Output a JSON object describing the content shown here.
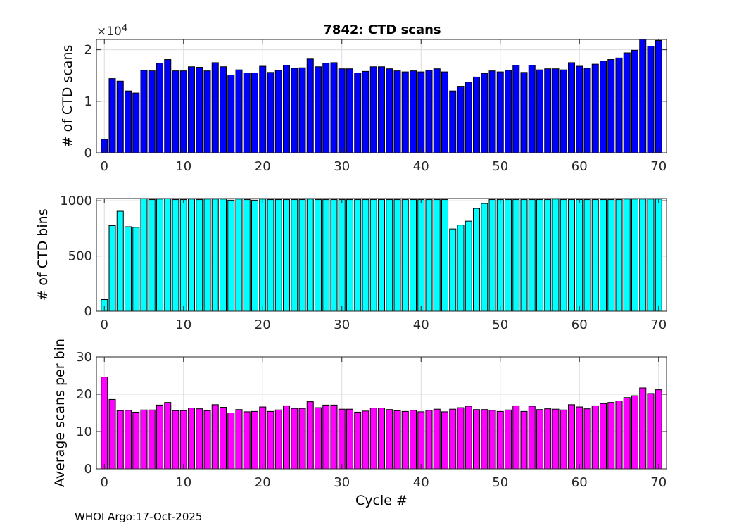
{
  "figure": {
    "title": "7842: CTD scans",
    "footer": "WHOI Argo:17-Oct-2025"
  },
  "chart_data": [
    {
      "type": "bar",
      "name": "ctd-scans",
      "title": "7842: CTD scans",
      "xlabel": "",
      "ylabel": "# of CTD scans",
      "xlim": [
        -1,
        71
      ],
      "ylim": [
        0,
        22000
      ],
      "xticks": [
        0,
        10,
        20,
        30,
        40,
        50,
        60,
        70
      ],
      "yticks": [
        0,
        10000,
        20000
      ],
      "ytick_labels": [
        "0",
        "1",
        "2"
      ],
      "exponent_label": "×10",
      "exponent_power": "4",
      "grid": true,
      "color": "#0000ff",
      "x": [
        0,
        1,
        2,
        3,
        4,
        5,
        6,
        7,
        8,
        9,
        10,
        11,
        12,
        13,
        14,
        15,
        16,
        17,
        18,
        19,
        20,
        21,
        22,
        23,
        24,
        25,
        26,
        27,
        28,
        29,
        30,
        31,
        32,
        33,
        34,
        35,
        36,
        37,
        38,
        39,
        40,
        41,
        42,
        43,
        44,
        45,
        46,
        47,
        48,
        49,
        50,
        51,
        52,
        53,
        54,
        55,
        56,
        57,
        58,
        59,
        60,
        61,
        62,
        63,
        64,
        65,
        66,
        67,
        68,
        69,
        70
      ],
      "values": [
        2600,
        14400,
        13900,
        12000,
        11600,
        16000,
        15900,
        17400,
        18100,
        15900,
        15900,
        16700,
        16600,
        15900,
        17500,
        16700,
        15100,
        16100,
        15500,
        15500,
        16800,
        15600,
        16000,
        17000,
        16400,
        16500,
        18200,
        16700,
        17400,
        17500,
        16300,
        16300,
        15500,
        15800,
        16700,
        16700,
        16300,
        15900,
        15700,
        15900,
        15700,
        16000,
        16300,
        15700,
        12000,
        12900,
        13700,
        14700,
        15400,
        15900,
        15700,
        16000,
        17000,
        15600,
        17000,
        16100,
        16300,
        16300,
        16100,
        17500,
        16800,
        16400,
        17200,
        17800,
        18100,
        18400,
        19400,
        19900,
        22300,
        20700,
        21800
      ]
    },
    {
      "type": "bar",
      "name": "ctd-bins",
      "title": "",
      "xlabel": "",
      "ylabel": "# of CTD bins",
      "xlim": [
        -1,
        71
      ],
      "ylim": [
        0,
        1020
      ],
      "xticks": [
        0,
        10,
        20,
        30,
        40,
        50,
        60,
        70
      ],
      "yticks": [
        0,
        500,
        1000
      ],
      "ytick_labels": [
        "0",
        "500",
        "1000"
      ],
      "grid": true,
      "color": "#00ffff",
      "x": [
        0,
        1,
        2,
        3,
        4,
        5,
        6,
        7,
        8,
        9,
        10,
        11,
        12,
        13,
        14,
        15,
        16,
        17,
        18,
        19,
        20,
        21,
        22,
        23,
        24,
        25,
        26,
        27,
        28,
        29,
        30,
        31,
        32,
        33,
        34,
        35,
        36,
        37,
        38,
        39,
        40,
        41,
        42,
        43,
        44,
        45,
        46,
        47,
        48,
        49,
        50,
        51,
        52,
        53,
        54,
        55,
        56,
        57,
        58,
        59,
        60,
        61,
        62,
        63,
        64,
        65,
        66,
        67,
        68,
        69,
        70
      ],
      "values": [
        105,
        775,
        905,
        765,
        760,
        1020,
        1010,
        1015,
        1020,
        1010,
        1010,
        1015,
        1010,
        1015,
        1015,
        1015,
        1005,
        1015,
        1010,
        1005,
        1015,
        1010,
        1010,
        1010,
        1010,
        1010,
        1015,
        1010,
        1010,
        1010,
        1010,
        1010,
        1010,
        1010,
        1010,
        1010,
        1010,
        1010,
        1010,
        1010,
        1010,
        1010,
        1010,
        1010,
        745,
        780,
        815,
        930,
        975,
        1010,
        1010,
        1010,
        1010,
        1010,
        1010,
        1010,
        1010,
        1015,
        1010,
        1010,
        1010,
        1010,
        1010,
        1010,
        1010,
        1010,
        1015,
        1015,
        1015,
        1015,
        1015
      ]
    },
    {
      "type": "bar",
      "name": "avg-scans-per-bin",
      "title": "",
      "xlabel": "Cycle #",
      "ylabel": "Average scans per bin",
      "xlim": [
        -1,
        71
      ],
      "ylim": [
        0,
        30
      ],
      "xticks": [
        0,
        10,
        20,
        30,
        40,
        50,
        60,
        70
      ],
      "yticks": [
        0,
        10,
        20,
        30
      ],
      "ytick_labels": [
        "0",
        "10",
        "20",
        "30"
      ],
      "grid": true,
      "color": "#ff00ff",
      "x": [
        0,
        1,
        2,
        3,
        4,
        5,
        6,
        7,
        8,
        9,
        10,
        11,
        12,
        13,
        14,
        15,
        16,
        17,
        18,
        19,
        20,
        21,
        22,
        23,
        24,
        25,
        26,
        27,
        28,
        29,
        30,
        31,
        32,
        33,
        34,
        35,
        36,
        37,
        38,
        39,
        40,
        41,
        42,
        43,
        44,
        45,
        46,
        47,
        48,
        49,
        50,
        51,
        52,
        53,
        54,
        55,
        56,
        57,
        58,
        59,
        60,
        61,
        62,
        63,
        64,
        65,
        66,
        67,
        68,
        69,
        70
      ],
      "values": [
        24.6,
        18.6,
        15.6,
        15.7,
        15.2,
        15.8,
        15.8,
        17.1,
        17.8,
        15.6,
        15.6,
        16.3,
        16.1,
        15.6,
        17.2,
        16.5,
        15.0,
        15.9,
        15.3,
        15.4,
        16.6,
        15.4,
        15.8,
        16.9,
        16.2,
        16.2,
        18.0,
        16.4,
        17.1,
        17.1,
        16.0,
        16.0,
        15.2,
        15.5,
        16.3,
        16.3,
        15.9,
        15.6,
        15.4,
        15.7,
        15.3,
        15.7,
        16.0,
        15.3,
        16.0,
        16.4,
        16.8,
        15.9,
        15.9,
        15.7,
        15.4,
        15.8,
        16.9,
        15.4,
        16.8,
        15.9,
        16.1,
        16.0,
        15.8,
        17.2,
        16.6,
        16.1,
        16.9,
        17.5,
        17.8,
        18.2,
        19.1,
        19.6,
        21.7,
        20.2,
        21.2
      ]
    }
  ]
}
